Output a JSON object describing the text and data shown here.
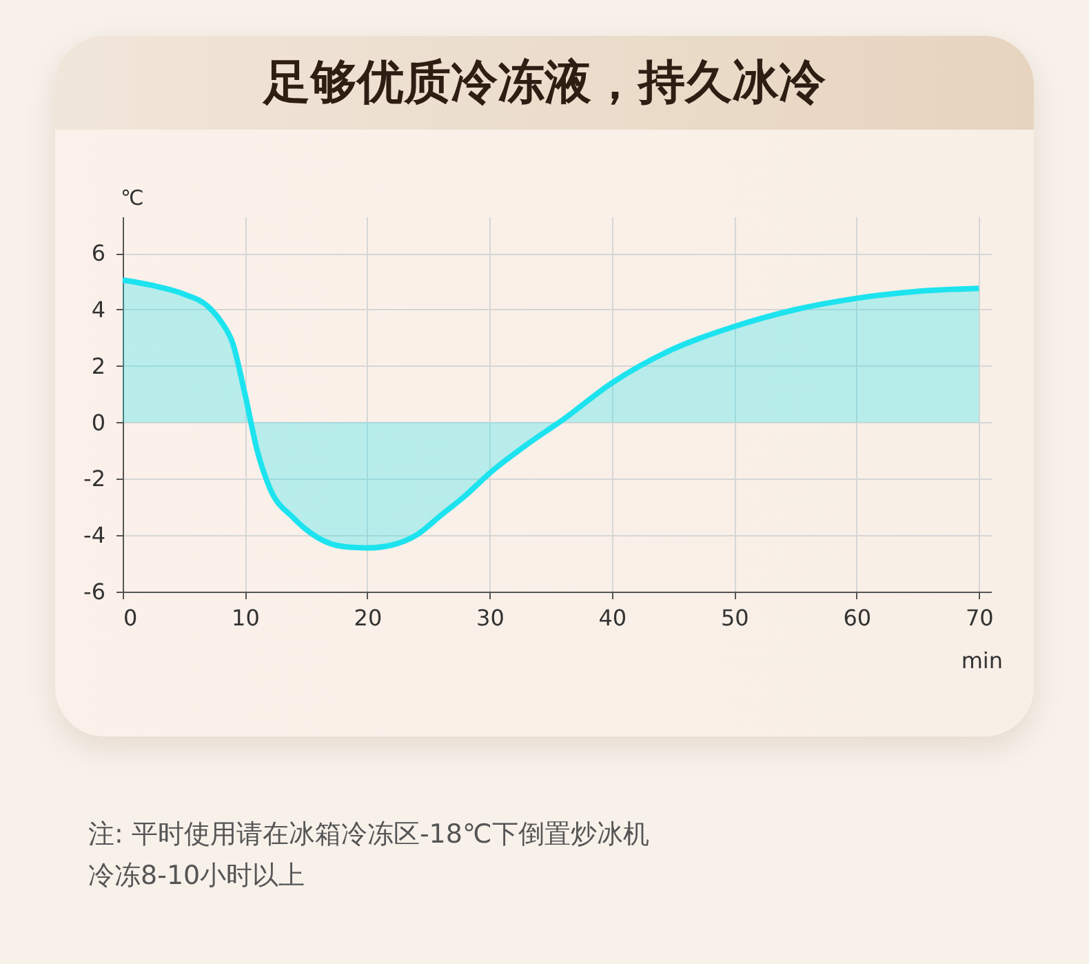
{
  "chart_data": {
    "type": "area",
    "title": "足够优质冷冻液，持久冰冷",
    "xlabel": "min",
    "ylabel": "℃",
    "x": [
      0,
      3,
      5,
      7,
      8,
      9,
      10,
      11,
      12,
      14,
      16,
      18,
      20,
      22,
      24,
      26,
      28,
      30,
      33,
      36,
      40,
      45,
      50,
      55,
      60,
      65,
      70
    ],
    "series": [
      {
        "color": "#1de3ef",
        "values": [
          5.05,
          4.8,
          4.55,
          4.1,
          3.6,
          2.8,
          1.0,
          -1.0,
          -2.3,
          -3.4,
          -4.1,
          -4.4,
          -4.45,
          -4.35,
          -4.0,
          -3.3,
          -2.6,
          -1.8,
          -0.8,
          0.1,
          1.4,
          2.6,
          3.4,
          4.0,
          4.4,
          4.65,
          4.75
        ]
      }
    ],
    "xlim": [
      0,
      71
    ],
    "xticks": [
      0,
      10,
      20,
      30,
      40,
      50,
      60,
      70
    ],
    "ylim": [
      -6,
      7.3
    ],
    "yticks": [
      -6,
      -4,
      -2,
      0,
      2,
      4,
      6
    ],
    "grid": true,
    "annotations": [
      "注: 平时使用请在冰箱冷冻区-18℃下倒置炒冰机",
      "冷冻8-10小时以上"
    ]
  }
}
